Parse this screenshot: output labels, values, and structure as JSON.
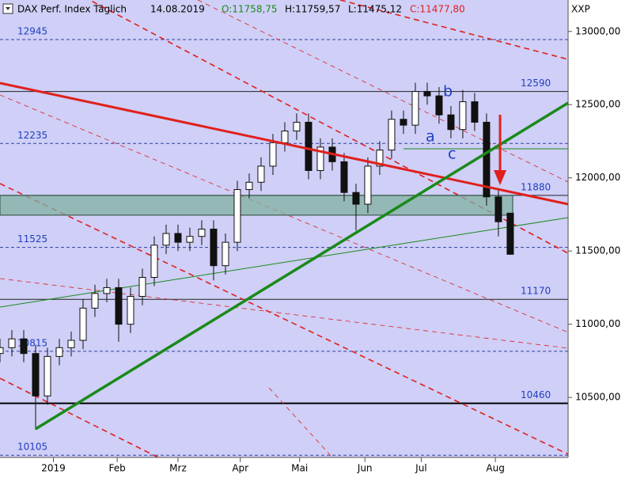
{
  "chart_data": {
    "type": "candlestick",
    "title": "DAX Perf. Index Täglich",
    "date": "14.08.2019",
    "ohlc_labels": [
      "O:11758,75",
      "H:11759,57",
      "L:11475,12",
      "C:11477,80"
    ],
    "y_axis_label": "XXP",
    "x": [
      0,
      4,
      8,
      12,
      16,
      20,
      24,
      28,
      32,
      36,
      40,
      44,
      48,
      52,
      56,
      60,
      64,
      68,
      72,
      76,
      80,
      84,
      88,
      92,
      96,
      100,
      104,
      108,
      112,
      116,
      120,
      124,
      128,
      132,
      136,
      140,
      144,
      148,
      152,
      156,
      160,
      164,
      168,
      172
    ],
    "open": [
      10800,
      10840,
      10900,
      10800,
      10510,
      10780,
      10840,
      10890,
      11110,
      11210,
      11250,
      11000,
      11190,
      11320,
      11540,
      11620,
      11560,
      11600,
      11650,
      11400,
      11560,
      11920,
      11970,
      12080,
      12240,
      12320,
      12380,
      12050,
      12210,
      12110,
      11900,
      11820,
      12080,
      12190,
      12400,
      12360,
      12590,
      12560,
      12430,
      12330,
      12520,
      12380,
      11870,
      11758.75
    ],
    "high": [
      10900,
      10960,
      10960,
      10860,
      10840,
      10900,
      10950,
      11170,
      11270,
      11310,
      11310,
      11250,
      11380,
      11600,
      11680,
      11680,
      11660,
      11710,
      11710,
      11620,
      11980,
      12030,
      12140,
      12300,
      12380,
      12440,
      12440,
      12270,
      12270,
      12170,
      11960,
      12140,
      12250,
      12460,
      12460,
      12650,
      12650,
      12620,
      12490,
      12600,
      12580,
      12440,
      11930,
      11759.57
    ],
    "low": [
      10740,
      10780,
      10740,
      10280,
      10450,
      10720,
      10780,
      10830,
      11050,
      11150,
      10880,
      10940,
      11130,
      11260,
      11480,
      11500,
      11500,
      11540,
      11300,
      11340,
      11500,
      11860,
      11910,
      12020,
      12180,
      12260,
      11990,
      11990,
      12050,
      11840,
      11640,
      11760,
      12020,
      12130,
      12300,
      12300,
      12500,
      12370,
      12270,
      12270,
      12320,
      11810,
      11600,
      11475.12
    ],
    "close": [
      10840,
      10900,
      10800,
      10510,
      10780,
      10840,
      10890,
      11110,
      11210,
      11250,
      11000,
      11190,
      11320,
      11540,
      11620,
      11560,
      11600,
      11650,
      11400,
      11560,
      11920,
      11970,
      12080,
      12240,
      12320,
      12380,
      12050,
      12210,
      12110,
      11900,
      11820,
      12080,
      12190,
      12400,
      12360,
      12590,
      12560,
      12430,
      12330,
      12520,
      12380,
      11870,
      11700,
      11477.8
    ],
    "xlim": [
      0,
      191.5
    ],
    "xticks": [
      {
        "value": 18,
        "label": "2019"
      },
      {
        "value": 39.5,
        "label": "Feb"
      },
      {
        "value": 60,
        "label": "Mrz"
      },
      {
        "value": 81,
        "label": "Apr"
      },
      {
        "value": 101,
        "label": "Mai"
      },
      {
        "value": 123,
        "label": "Jun"
      },
      {
        "value": 142,
        "label": "Jul"
      },
      {
        "value": 167,
        "label": "Aug"
      }
    ],
    "ylim": [
      10090,
      13215
    ],
    "yticks": [
      {
        "value": 13000,
        "label": "13000,00"
      },
      {
        "value": 12500,
        "label": "12500,00"
      },
      {
        "value": 12000,
        "label": "12000,00"
      },
      {
        "value": 11500,
        "label": "11500,00"
      },
      {
        "value": 11000,
        "label": "11000,00"
      },
      {
        "value": 10500,
        "label": "10500,00"
      }
    ],
    "levels": [
      12945,
      12590,
      12235,
      11880,
      11525,
      11170,
      10815,
      10460,
      10105
    ],
    "zone": {
      "low": 11745,
      "high": 11880
    },
    "annotations": [
      "a",
      "b",
      "c"
    ]
  }
}
